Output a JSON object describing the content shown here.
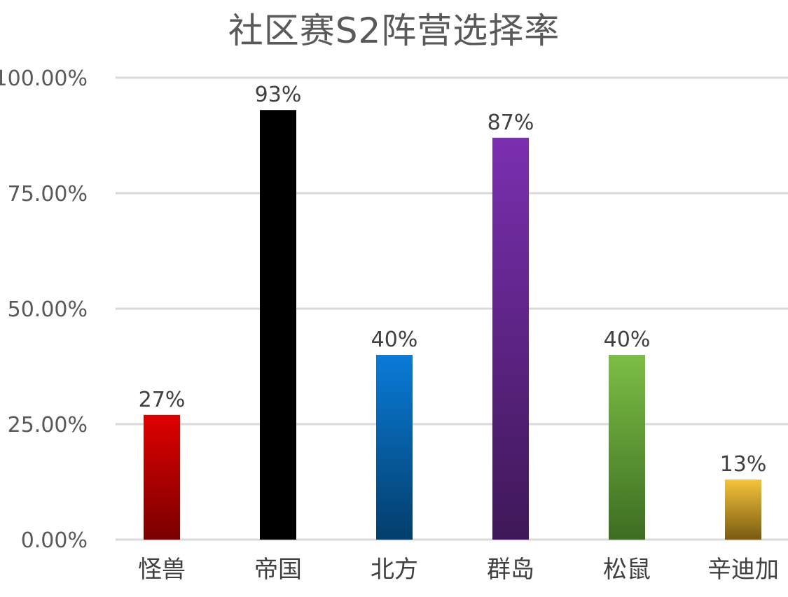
{
  "chart_data": {
    "type": "bar",
    "title": "社区赛S2阵营选择率",
    "categories": [
      "怪兽",
      "帝国",
      "北方",
      "群岛",
      "松鼠",
      "辛迪加"
    ],
    "values": [
      0.27,
      0.93,
      0.4,
      0.87,
      0.4,
      0.13
    ],
    "data_labels": [
      "27%",
      "93%",
      "40%",
      "87%",
      "40%",
      "13%"
    ],
    "ylim": [
      0,
      1
    ],
    "yticks": [
      0,
      0.25,
      0.5,
      0.75,
      1
    ],
    "ytick_labels": [
      "0.00%",
      "25.00%",
      "50.00%",
      "75.00%",
      "100.00%"
    ],
    "xlabel": "",
    "ylabel": "",
    "grid": true,
    "legend": "none",
    "bar_colors": [
      [
        "#e00000",
        "#7a0000"
      ],
      [
        "#000000",
        "#000000"
      ],
      [
        "#0a7bd8",
        "#033e6b"
      ],
      [
        "#7b2fb0",
        "#3e1858"
      ],
      [
        "#7cbe45",
        "#3d6d22"
      ],
      [
        "#f5c43a",
        "#7a5a12"
      ]
    ],
    "colors": {
      "title": "#595959",
      "tick_text": "#595959",
      "data_label": "#404040",
      "category_text": "#404040",
      "gridline": "#d9d9d9"
    }
  }
}
